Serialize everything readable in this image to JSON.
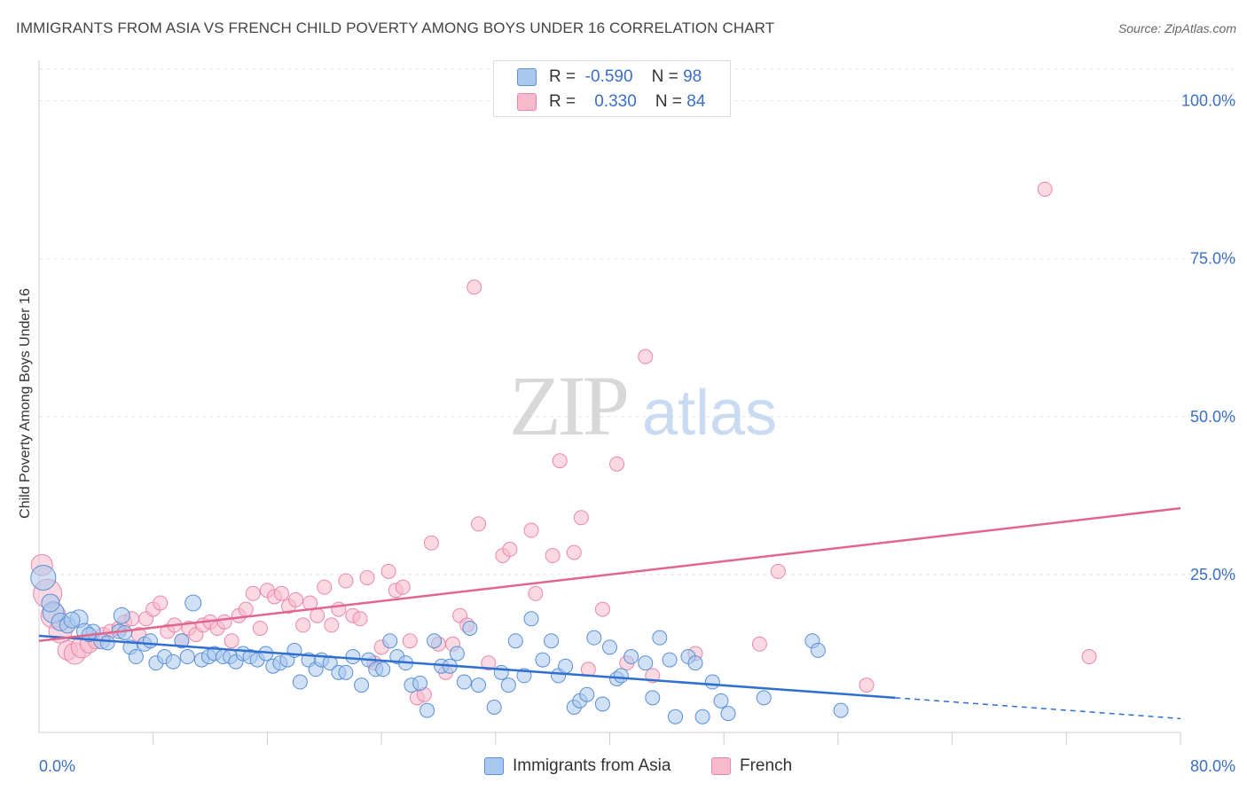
{
  "title": "IMMIGRANTS FROM ASIA VS FRENCH CHILD POVERTY AMONG BOYS UNDER 16 CORRELATION CHART",
  "source": "Source: ZipAtlas.com",
  "watermark": {
    "zip": "ZIP",
    "atlas": "atlas"
  },
  "colors": {
    "blue_fill": "#aac8ef",
    "blue_stroke": "#5b8fd6",
    "blue_line": "#2f6fd0",
    "pink_fill": "#f7b9cc",
    "pink_stroke": "#e888a8",
    "pink_line": "#e06690",
    "axis_text": "#3a6fc4"
  },
  "legend": {
    "rows": [
      {
        "r_label": "R =",
        "r_value": "-0.590",
        "n_label": "N =",
        "n_value": "98"
      },
      {
        "r_label": "R =",
        "r_value": "0.330",
        "n_label": "N =",
        "n_value": "84"
      }
    ]
  },
  "chart_data": {
    "type": "scatter",
    "title": "IMMIGRANTS FROM ASIA VS FRENCH CHILD POVERTY AMONG BOYS UNDER 16 CORRELATION CHART",
    "xlabel": "",
    "ylabel": "Child Poverty Among Boys Under 16",
    "xlim": [
      0,
      80
    ],
    "ylim": [
      0,
      105
    ],
    "x_ticks": [
      "0.0%",
      "80.0%"
    ],
    "y_ticks": [
      {
        "value": 25,
        "label": "25.0%"
      },
      {
        "value": 50,
        "label": "50.0%"
      },
      {
        "value": 75,
        "label": "75.0%"
      },
      {
        "value": 100,
        "label": "100.0%"
      }
    ],
    "grid": true,
    "legend_position": "top-center",
    "series": [
      {
        "name": "Immigrants from Asia",
        "color": "#aac8ef",
        "trend": {
          "x0": 0,
          "y0": 15.3,
          "x1": 60,
          "y1": 5.5,
          "dash_to_x": 80,
          "dash_to_y": 2.2
        },
        "points": [
          [
            0.3,
            24.5,
            14
          ],
          [
            1.0,
            19,
            12
          ],
          [
            1.5,
            17.5,
            10
          ],
          [
            2,
            17,
            9
          ],
          [
            2.8,
            18,
            10
          ],
          [
            3.2,
            16,
            9
          ],
          [
            3.8,
            16,
            8
          ],
          [
            4.4,
            14.5,
            9
          ],
          [
            4.8,
            14.2,
            8
          ],
          [
            5.6,
            16,
            8
          ],
          [
            5.8,
            18.5,
            9
          ],
          [
            6.4,
            13.5,
            8
          ],
          [
            6.8,
            12,
            8
          ],
          [
            7.4,
            14,
            8
          ],
          [
            7.8,
            14.5,
            8
          ],
          [
            8.2,
            11,
            8
          ],
          [
            8.8,
            12,
            8
          ],
          [
            9.4,
            11.2,
            8
          ],
          [
            10,
            14.5,
            8
          ],
          [
            10.4,
            12,
            8
          ],
          [
            10.8,
            20.5,
            9
          ],
          [
            11.4,
            11.5,
            8
          ],
          [
            11.9,
            12,
            8
          ],
          [
            12.3,
            12.5,
            8
          ],
          [
            12.9,
            12,
            8
          ],
          [
            13.4,
            12,
            8
          ],
          [
            13.8,
            11.2,
            8
          ],
          [
            14.3,
            12.5,
            8
          ],
          [
            14.8,
            12,
            8
          ],
          [
            15.3,
            11.5,
            8
          ],
          [
            15.9,
            12.5,
            8
          ],
          [
            16.4,
            10.5,
            8
          ],
          [
            16.9,
            11,
            8
          ],
          [
            17.4,
            11.5,
            8
          ],
          [
            17.9,
            13,
            8
          ],
          [
            18.3,
            8,
            8
          ],
          [
            18.9,
            11.5,
            8
          ],
          [
            19.4,
            10,
            8
          ],
          [
            19.8,
            11.5,
            8
          ],
          [
            20.4,
            11,
            8
          ],
          [
            21,
            9.5,
            8
          ],
          [
            21.5,
            9.5,
            8
          ],
          [
            22,
            12,
            8
          ],
          [
            22.6,
            7.5,
            8
          ],
          [
            23.1,
            11.5,
            8
          ],
          [
            23.6,
            10,
            8
          ],
          [
            24.1,
            10,
            8
          ],
          [
            24.6,
            14.5,
            8
          ],
          [
            25.1,
            12,
            8
          ],
          [
            25.7,
            11,
            8
          ],
          [
            26.1,
            7.5,
            8
          ],
          [
            26.7,
            7.8,
            8
          ],
          [
            27.2,
            3.5,
            8
          ],
          [
            27.7,
            14.5,
            8
          ],
          [
            28.2,
            10.5,
            8
          ],
          [
            28.8,
            10.5,
            8
          ],
          [
            29.3,
            12.5,
            8
          ],
          [
            29.8,
            8,
            8
          ],
          [
            30.2,
            16.5,
            8
          ],
          [
            30.8,
            7.5,
            8
          ],
          [
            31.9,
            4,
            8
          ],
          [
            32.4,
            9.5,
            8
          ],
          [
            32.9,
            7.5,
            8
          ],
          [
            33.4,
            14.5,
            8
          ],
          [
            34,
            9,
            8
          ],
          [
            34.5,
            18,
            8
          ],
          [
            35.3,
            11.5,
            8
          ],
          [
            35.9,
            14.5,
            8
          ],
          [
            36.4,
            9,
            8
          ],
          [
            36.9,
            10.5,
            8
          ],
          [
            37.5,
            4,
            8
          ],
          [
            37.9,
            5,
            8
          ],
          [
            38.4,
            6,
            8
          ],
          [
            38.9,
            15,
            8
          ],
          [
            39.5,
            4.5,
            8
          ],
          [
            40,
            13.5,
            8
          ],
          [
            40.5,
            8.5,
            8
          ],
          [
            40.8,
            9,
            8
          ],
          [
            41.5,
            12,
            8
          ],
          [
            42.5,
            11,
            8
          ],
          [
            43,
            5.5,
            8
          ],
          [
            43.5,
            15,
            8
          ],
          [
            44.2,
            11.5,
            8
          ],
          [
            44.6,
            2.5,
            8
          ],
          [
            45.5,
            12,
            8
          ],
          [
            46,
            11,
            8
          ],
          [
            46.5,
            2.5,
            8
          ],
          [
            47.2,
            8,
            8
          ],
          [
            47.8,
            5,
            8
          ],
          [
            48.3,
            3,
            8
          ],
          [
            50.8,
            5.5,
            8
          ],
          [
            54.2,
            14.5,
            8
          ],
          [
            54.6,
            13,
            8
          ],
          [
            56.2,
            3.5,
            8
          ],
          [
            0.8,
            20.5,
            10
          ],
          [
            2.3,
            17.8,
            9
          ],
          [
            6.0,
            15.8,
            8
          ],
          [
            3.5,
            15.5,
            8
          ]
        ]
      },
      {
        "name": "French",
        "color": "#f7b9cc",
        "trend": {
          "x0": 0,
          "y0": 14.5,
          "x1": 80,
          "y1": 35.5
        },
        "points": [
          [
            0.2,
            26.5,
            12
          ],
          [
            0.6,
            22,
            16
          ],
          [
            1.0,
            18.5,
            14
          ],
          [
            1.5,
            16,
            13
          ],
          [
            2.0,
            13,
            11
          ],
          [
            2.5,
            12.5,
            12
          ],
          [
            3.0,
            13.5,
            12
          ],
          [
            3.5,
            14,
            10
          ],
          [
            4,
            14.5,
            9
          ],
          [
            4.5,
            15.5,
            8
          ],
          [
            5,
            16,
            8
          ],
          [
            5.6,
            16.5,
            8
          ],
          [
            6,
            17.5,
            8
          ],
          [
            6.5,
            18,
            8
          ],
          [
            7,
            15.5,
            8
          ],
          [
            7.5,
            18,
            8
          ],
          [
            8,
            19.5,
            8
          ],
          [
            8.5,
            20.5,
            8
          ],
          [
            9,
            16,
            8
          ],
          [
            9.5,
            17,
            8
          ],
          [
            10,
            14.5,
            8
          ],
          [
            10.5,
            16.5,
            8
          ],
          [
            11,
            15.5,
            8
          ],
          [
            11.5,
            17,
            8
          ],
          [
            12,
            17.5,
            8
          ],
          [
            12.5,
            16.5,
            8
          ],
          [
            13,
            17.5,
            8
          ],
          [
            13.5,
            14.5,
            8
          ],
          [
            14,
            18.5,
            8
          ],
          [
            14.5,
            19.5,
            8
          ],
          [
            15,
            22,
            8
          ],
          [
            15.5,
            16.5,
            8
          ],
          [
            16,
            22.5,
            8
          ],
          [
            16.5,
            21.5,
            8
          ],
          [
            17,
            22,
            8
          ],
          [
            17.5,
            20,
            8
          ],
          [
            18,
            21,
            8
          ],
          [
            18.5,
            17,
            8
          ],
          [
            19,
            20.5,
            8
          ],
          [
            19.5,
            18.5,
            8
          ],
          [
            20,
            23,
            8
          ],
          [
            20.5,
            17,
            8
          ],
          [
            21,
            19.5,
            8
          ],
          [
            21.5,
            24,
            8
          ],
          [
            22,
            18.5,
            8
          ],
          [
            22.5,
            18,
            8
          ],
          [
            23,
            24.5,
            8
          ],
          [
            23.5,
            11,
            8
          ],
          [
            24,
            13.5,
            8
          ],
          [
            24.5,
            25.5,
            8
          ],
          [
            25,
            22.5,
            8
          ],
          [
            25.5,
            23,
            8
          ],
          [
            26,
            14.5,
            8
          ],
          [
            26.5,
            5.5,
            8
          ],
          [
            27,
            6,
            8
          ],
          [
            27.5,
            30,
            8
          ],
          [
            28,
            14,
            8
          ],
          [
            28.5,
            9.5,
            8
          ],
          [
            29,
            14,
            8
          ],
          [
            29.5,
            18.5,
            8
          ],
          [
            30,
            17,
            8
          ],
          [
            30.5,
            70.5,
            8
          ],
          [
            30.8,
            33,
            8
          ],
          [
            31.5,
            11,
            8
          ],
          [
            32.5,
            28,
            8
          ],
          [
            33,
            29,
            8
          ],
          [
            34.5,
            32,
            8
          ],
          [
            34.8,
            22,
            8
          ],
          [
            36,
            28,
            8
          ],
          [
            36.5,
            43,
            8
          ],
          [
            37.5,
            28.5,
            8
          ],
          [
            38,
            34,
            8
          ],
          [
            38.5,
            10,
            8
          ],
          [
            39.5,
            19.5,
            8
          ],
          [
            40.5,
            42.5,
            8
          ],
          [
            41.2,
            11,
            8
          ],
          [
            42.5,
            59.5,
            8
          ],
          [
            43,
            9,
            8
          ],
          [
            46,
            12.5,
            8
          ],
          [
            50.5,
            14,
            8
          ],
          [
            51.8,
            25.5,
            8
          ],
          [
            58,
            7.5,
            8
          ],
          [
            70.5,
            86,
            8
          ],
          [
            73.6,
            12,
            8
          ]
        ]
      }
    ]
  }
}
